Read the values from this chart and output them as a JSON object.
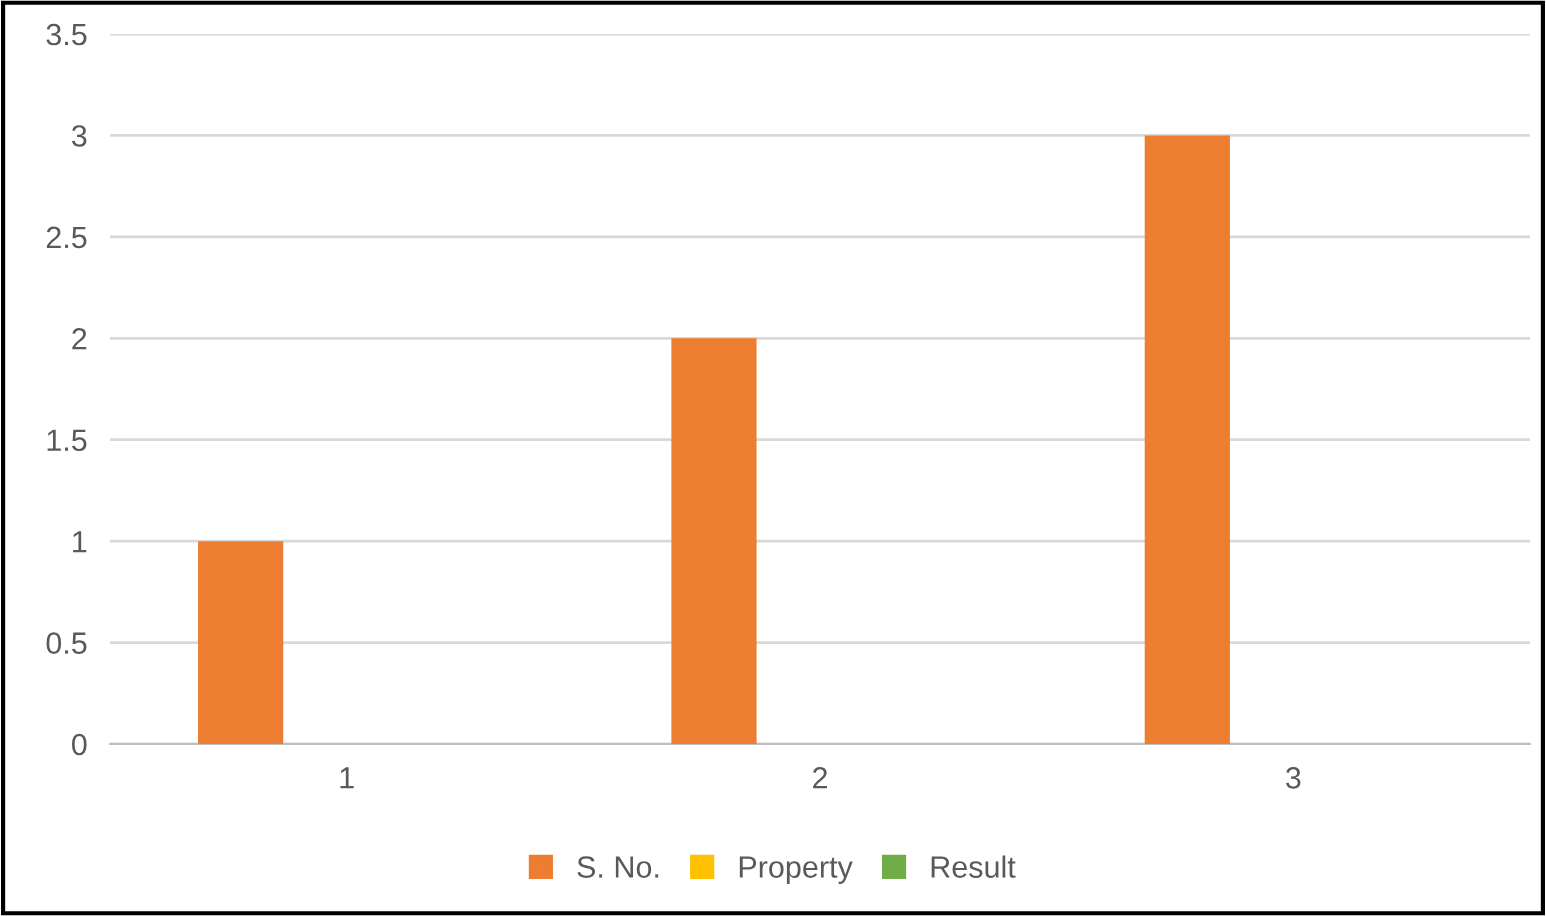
{
  "chart_data": {
    "type": "bar",
    "categories": [
      "1",
      "2",
      "3"
    ],
    "series": [
      {
        "name": "S. No.",
        "color": "#ed7d31",
        "values": [
          1,
          2,
          3
        ]
      },
      {
        "name": "Property",
        "color": "#ffc000",
        "values": [
          null,
          null,
          null
        ]
      },
      {
        "name": "Result",
        "color": "#70ad47",
        "values": [
          null,
          null,
          null
        ]
      }
    ],
    "ylim": [
      0,
      3.5
    ],
    "yticks": [
      0,
      0.5,
      1,
      1.5,
      2,
      2.5,
      3,
      3.5
    ],
    "grid": "y",
    "legend": "bottom"
  }
}
